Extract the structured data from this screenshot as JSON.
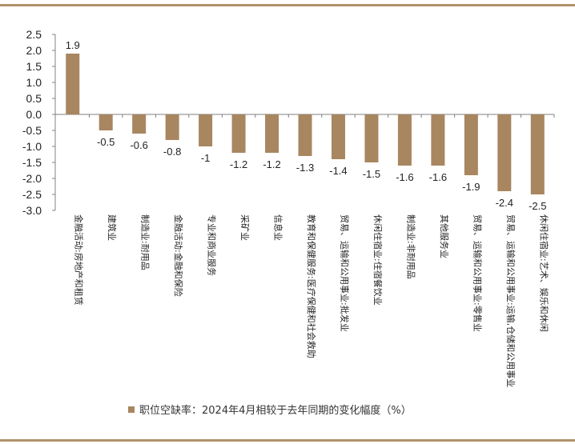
{
  "chart_data": {
    "type": "bar",
    "categories": [
      "金融活动:房地产和租赁",
      "建筑业",
      "制造业:耐用品",
      "金融活动:金融和保险",
      "专业和商业服务",
      "采矿业",
      "信息业",
      "教育和保健服务:医疗保健和社会救助",
      "贸易、运输和公用事业:批发业",
      "休闲住宿业:住宿餐饮业",
      "制造业:非耐用品",
      "其他服务业",
      "贸易、运输和公用事业:零售业",
      "贸易、运输和公用事业:运输,仓储和公用事业",
      "休闲住宿业:艺术、娱乐和休闲"
    ],
    "value_labels": [
      "1.9",
      "-0.5",
      "-0.6",
      "-0.8",
      "-1",
      "-1.2",
      "-1.2",
      "-1.3",
      "-1.4",
      "-1.5",
      "-1.6",
      "-1.6",
      "-1.9",
      "-2.4",
      "-2.5"
    ],
    "series": [
      {
        "name": "职位空缺率：2024年4月相较于去年同期的变化幅度（%）",
        "values": [
          1.9,
          -0.5,
          -0.6,
          -0.8,
          -1.0,
          -1.2,
          -1.2,
          -1.3,
          -1.4,
          -1.5,
          -1.6,
          -1.6,
          -1.9,
          -2.4,
          -2.5
        ]
      }
    ],
    "ylim": [
      -3.0,
      2.5
    ],
    "yticks": [
      "2.5",
      "2.0",
      "1.5",
      "1.0",
      "0.5",
      "0.0",
      "-0.5",
      "-1.0",
      "-1.5",
      "-2.0",
      "-2.5",
      "-3.0"
    ],
    "legend_position": "bottom",
    "grid": false,
    "colors": {
      "bar": "#a88660",
      "rule": "#b3916a",
      "axis": "#808080",
      "text": "#222222"
    }
  }
}
